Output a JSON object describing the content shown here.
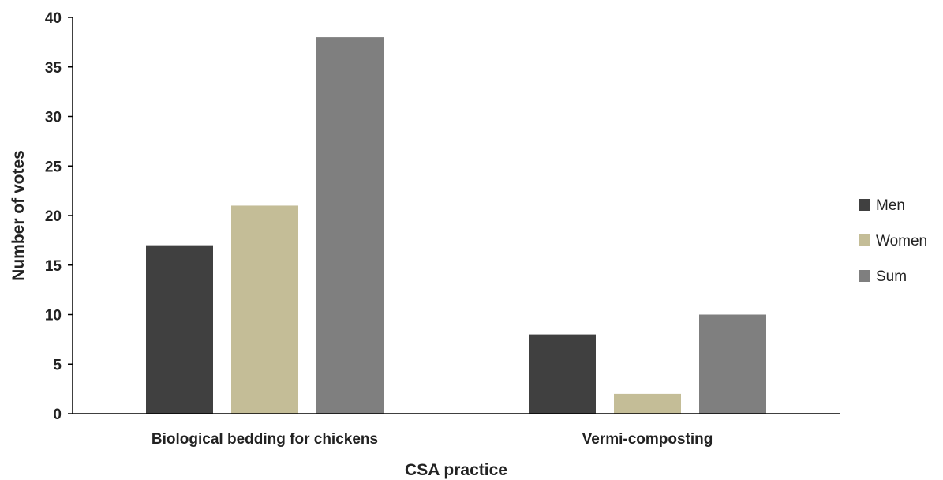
{
  "chart_data": {
    "type": "bar",
    "title": "",
    "xlabel": "CSA practice",
    "ylabel": "Number of votes",
    "categories": [
      "Biological bedding for chickens",
      "Vermi-composting"
    ],
    "series": [
      {
        "name": "Men",
        "color": "#404040",
        "values": [
          17,
          8
        ]
      },
      {
        "name": "Women",
        "color": "#c4bd97",
        "values": [
          21,
          2
        ]
      },
      {
        "name": "Sum",
        "color": "#7f7f7f",
        "values": [
          38,
          10
        ]
      }
    ],
    "ylim": [
      0,
      40
    ],
    "yticks": [
      0,
      5,
      10,
      15,
      20,
      25,
      30,
      35,
      40
    ],
    "grid": false,
    "legend_position": "right"
  }
}
